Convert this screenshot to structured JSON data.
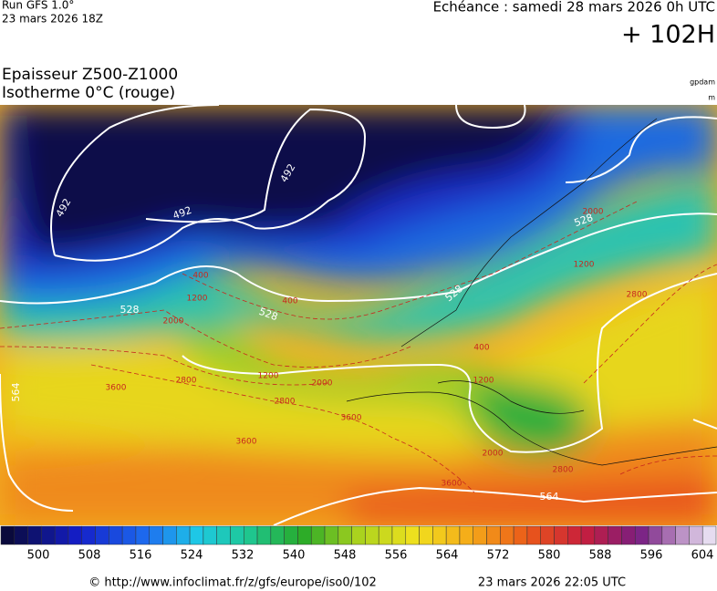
{
  "header": {
    "run": "Run GFS 1.0°",
    "run_date": "23 mars 2026 18Z",
    "valid": "Echéance : samedi 28 mars 2026 0h UTC",
    "lead": "+ 102H",
    "field": "Epaisseur Z500-Z1000",
    "isotherm": "Isotherme 0°C (rouge)",
    "unit_thickness": "gpdam",
    "unit_height": "m"
  },
  "map": {
    "thickness_labels": [
      492,
      492,
      492,
      528,
      528,
      528,
      528,
      564,
      564
    ],
    "isotherm_labels": [
      400,
      1200,
      2000,
      400,
      1200,
      2000,
      2800,
      3600,
      2800,
      3600,
      2000,
      3600,
      400,
      1200,
      1200,
      2800,
      2800,
      2000,
      3600
    ]
  },
  "colorbar": {
    "labels": [
      500,
      508,
      516,
      524,
      532,
      540,
      548,
      556,
      564,
      572,
      580,
      588,
      596,
      604
    ]
  },
  "footer": {
    "source": "© http://www.infoclimat.fr/z/gfs/europe/iso0/102",
    "generated": "23 mars 2026 22:05 UTC"
  }
}
